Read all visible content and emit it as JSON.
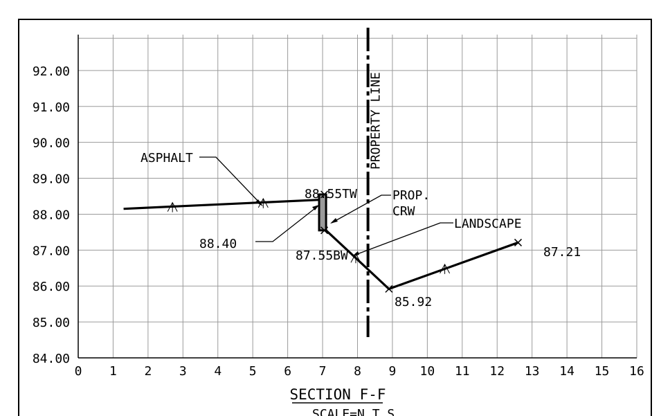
{
  "chart_data": {
    "type": "line",
    "title": "SECTION F-F",
    "subtitle": "SCALE=N.T.S.",
    "x": {
      "min": 0,
      "max": 16,
      "ticks": [
        "0",
        "1",
        "2",
        "3",
        "4",
        "5",
        "6",
        "7",
        "8",
        "9",
        "10",
        "11",
        "12",
        "13",
        "14",
        "15",
        "16"
      ]
    },
    "y": {
      "min": 84.0,
      "max": 93.0,
      "ticks": [
        "84.00",
        "85.00",
        "86.00",
        "87.00",
        "88.00",
        "89.00",
        "90.00",
        "91.00",
        "92.00"
      ]
    },
    "grid": true,
    "series": [
      {
        "points": [
          [
            1.3,
            88.15
          ],
          [
            6.9,
            88.4
          ]
        ]
      },
      {
        "points": [
          [
            7.1,
            87.55
          ],
          [
            8.9,
            85.92
          ],
          [
            12.6,
            87.21
          ]
        ]
      }
    ],
    "wall": {
      "x": [
        6.9,
        7.1
      ],
      "top": 88.55,
      "bottom": 87.55
    },
    "property_line_x": 8.3,
    "slope_marks": [
      [
        2.7,
        88.17
      ],
      [
        5.3,
        88.28
      ],
      [
        7.95,
        86.75
      ],
      [
        10.5,
        86.45
      ]
    ],
    "labels": {
      "asphalt": "ASPHALT",
      "top_wall": "88.55TW",
      "bottom_wall": "87.55BW",
      "prop": "PROP.",
      "crw": "CRW",
      "landscape": "LANDSCAPE",
      "asphalt_elev": "88.40",
      "low_point": "85.92",
      "end_point": "87.21",
      "property_line": "PROPERTY LINE"
    }
  }
}
